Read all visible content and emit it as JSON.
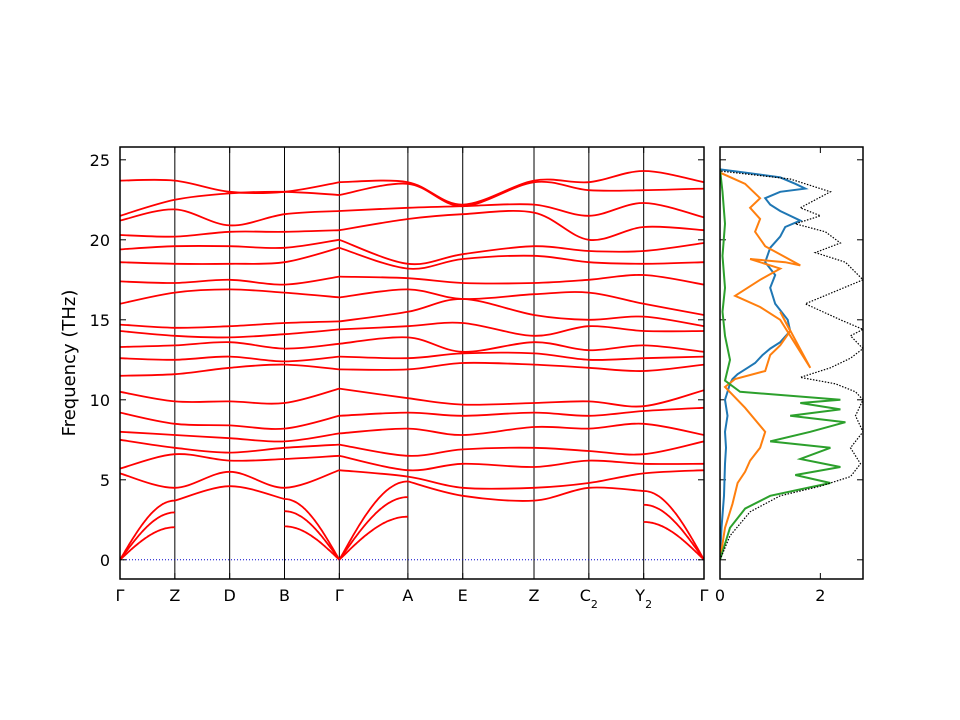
{
  "chart_data": [
    {
      "type": "line",
      "ylabel": "Frequency (THz)",
      "xlabel": "",
      "ylim": [
        -1.2,
        25.8
      ],
      "yticks": [
        0,
        5,
        10,
        15,
        20,
        25
      ],
      "path_labels": [
        {
          "text": "Γ",
          "sub": "",
          "pos": 0.0
        },
        {
          "text": "Z",
          "sub": "",
          "pos": 1.0
        },
        {
          "text": "D",
          "sub": "",
          "pos": 2.0
        },
        {
          "text": "B",
          "sub": "",
          "pos": 3.0
        },
        {
          "text": "Γ",
          "sub": "",
          "pos": 4.0
        },
        {
          "text": "A",
          "sub": "",
          "pos": 5.25
        },
        {
          "text": "E",
          "sub": "",
          "pos": 6.25
        },
        {
          "text": "Z",
          "sub": "",
          "pos": 7.55
        },
        {
          "text": "C",
          "sub": "2",
          "pos": 8.55
        },
        {
          "text": "Y",
          "sub": "2",
          "pos": 9.55
        },
        {
          "text": "Γ",
          "sub": "",
          "pos": 10.65
        }
      ],
      "line_color": "#ff0000",
      "zero_line_color": "#0000cc",
      "acoustic_top_values": {
        "Z": 3.7,
        "D": 4.6,
        "B": 3.8,
        "A": 4.9,
        "E": 4.0,
        "Z2": 3.7,
        "C2": 4.5,
        "Y2": 4.3
      },
      "band_key_values": [
        {
          "at": [
            0,
            1,
            2,
            3,
            4,
            5.25,
            6.25,
            7.55,
            8.55,
            9.55,
            10.65
          ],
          "y": [
            5.4,
            4.5,
            5.5,
            4.5,
            5.6,
            5.2,
            4.5,
            4.5,
            4.8,
            5.4,
            5.6
          ]
        },
        {
          "at": [
            0,
            1,
            2,
            3,
            4,
            5.25,
            6.25,
            7.55,
            8.55,
            9.55,
            10.65
          ],
          "y": [
            5.7,
            6.6,
            6.2,
            6.3,
            6.5,
            5.6,
            6.0,
            5.8,
            6.2,
            6.0,
            6.0
          ]
        },
        {
          "at": [
            0,
            1,
            2,
            3,
            4,
            5.25,
            6.25,
            7.55,
            8.55,
            9.55,
            10.65
          ],
          "y": [
            7.5,
            7.0,
            6.7,
            7.0,
            7.2,
            6.5,
            6.9,
            7.0,
            6.8,
            6.6,
            7.4
          ]
        },
        {
          "at": [
            0,
            1,
            2,
            3,
            4,
            5.25,
            6.25,
            7.55,
            8.55,
            9.55,
            10.65
          ],
          "y": [
            8.0,
            7.8,
            7.6,
            7.4,
            7.9,
            8.2,
            7.8,
            8.3,
            8.2,
            8.5,
            7.8
          ]
        },
        {
          "at": [
            0,
            1,
            2,
            3,
            4,
            5.25,
            6.25,
            7.55,
            8.55,
            9.55,
            10.65
          ],
          "y": [
            9.2,
            8.5,
            8.4,
            8.2,
            9.0,
            9.2,
            9.0,
            9.2,
            9.0,
            9.3,
            9.5
          ]
        },
        {
          "at": [
            0,
            1,
            2,
            3,
            4,
            5.25,
            6.25,
            7.55,
            8.55,
            9.55,
            10.65
          ],
          "y": [
            10.5,
            9.9,
            9.9,
            9.8,
            10.7,
            10.1,
            9.7,
            9.8,
            9.9,
            9.6,
            10.6
          ]
        },
        {
          "at": [
            0,
            1,
            2,
            3,
            4,
            5.25,
            6.25,
            7.55,
            8.55,
            9.55,
            10.65
          ],
          "y": [
            11.5,
            11.6,
            12.0,
            12.2,
            11.9,
            11.9,
            12.3,
            12.2,
            12.0,
            11.8,
            12.2
          ]
        },
        {
          "at": [
            0,
            1,
            2,
            3,
            4,
            5.25,
            6.25,
            7.55,
            8.55,
            9.55,
            10.65
          ],
          "y": [
            12.6,
            12.5,
            12.7,
            12.4,
            12.7,
            12.6,
            12.9,
            12.9,
            12.5,
            12.6,
            12.7
          ]
        },
        {
          "at": [
            0,
            1,
            2,
            3,
            4,
            5.25,
            6.25,
            7.55,
            8.55,
            9.55,
            10.65
          ],
          "y": [
            13.3,
            13.4,
            13.6,
            13.2,
            13.5,
            13.9,
            13.0,
            13.6,
            13.1,
            13.4,
            13.0
          ]
        },
        {
          "at": [
            0,
            1,
            2,
            3,
            4,
            5.25,
            6.25,
            7.55,
            8.55,
            9.55,
            10.65
          ],
          "y": [
            14.3,
            14.0,
            13.9,
            14.1,
            14.4,
            14.6,
            14.8,
            14.0,
            14.6,
            14.3,
            14.3
          ]
        },
        {
          "at": [
            0,
            1,
            2,
            3,
            4,
            5.25,
            6.25,
            7.55,
            8.55,
            9.55,
            10.65
          ],
          "y": [
            14.7,
            14.5,
            14.6,
            14.8,
            14.9,
            15.5,
            16.3,
            15.3,
            15.0,
            15.2,
            14.6
          ]
        },
        {
          "at": [
            0,
            1,
            2,
            3,
            4,
            5.25,
            6.25,
            7.55,
            8.55,
            9.55,
            10.65
          ],
          "y": [
            16.0,
            16.7,
            16.9,
            16.7,
            16.4,
            16.9,
            16.3,
            16.6,
            16.7,
            16.0,
            15.3
          ]
        },
        {
          "at": [
            0,
            1,
            2,
            3,
            4,
            5.25,
            6.25,
            7.55,
            8.55,
            9.55,
            10.65
          ],
          "y": [
            17.4,
            17.3,
            17.5,
            17.2,
            17.7,
            17.6,
            17.3,
            17.3,
            17.5,
            17.8,
            17.2
          ]
        },
        {
          "at": [
            0,
            1,
            2,
            3,
            4,
            5.25,
            6.25,
            7.55,
            8.55,
            9.55,
            10.65
          ],
          "y": [
            18.6,
            18.5,
            18.5,
            18.6,
            19.5,
            18.2,
            18.8,
            19.0,
            18.6,
            18.5,
            18.6
          ]
        },
        {
          "at": [
            0,
            1,
            2,
            3,
            4,
            5.25,
            6.25,
            7.55,
            8.55,
            9.55,
            10.65
          ],
          "y": [
            19.4,
            19.6,
            19.6,
            19.5,
            20.0,
            18.5,
            19.1,
            19.6,
            19.3,
            19.3,
            19.8
          ]
        },
        {
          "at": [
            0,
            1,
            2,
            3,
            4,
            5.25,
            6.25,
            7.55,
            8.55,
            9.55,
            10.65
          ],
          "y": [
            20.3,
            20.2,
            20.5,
            20.5,
            20.6,
            21.3,
            21.6,
            21.7,
            20.0,
            20.8,
            20.6
          ]
        },
        {
          "at": [
            0,
            1,
            2,
            3,
            4,
            5.25,
            6.25,
            7.55,
            8.55,
            9.55,
            10.65
          ],
          "y": [
            21.2,
            21.9,
            20.9,
            21.6,
            21.8,
            22.0,
            22.1,
            22.2,
            21.5,
            22.3,
            21.4
          ]
        },
        {
          "at": [
            0,
            1,
            2,
            3,
            4,
            5.25,
            6.25,
            7.55,
            8.55,
            9.55,
            10.65
          ],
          "y": [
            21.5,
            22.5,
            22.9,
            23.0,
            22.8,
            23.5,
            22.1,
            23.6,
            23.1,
            23.1,
            23.2
          ]
        },
        {
          "at": [
            0,
            1,
            2,
            3,
            4,
            5.25,
            6.25,
            7.55,
            8.55,
            9.55,
            10.65
          ],
          "y": [
            23.7,
            23.7,
            23.0,
            23.0,
            23.6,
            23.6,
            22.2,
            23.7,
            23.6,
            24.3,
            23.6
          ]
        }
      ]
    },
    {
      "type": "line",
      "xlabel": "",
      "ylabel": "",
      "xlim": [
        0,
        2.85
      ],
      "xticks": [
        0,
        2
      ],
      "ylim": [
        -1.2,
        25.8
      ],
      "series": [
        {
          "color": "#1f77b4",
          "style": "solid",
          "x": [
            0,
            0.03,
            0.08,
            0.1,
            0.12,
            0.1,
            0.15,
            0.1,
            0.15,
            0.2,
            0.25,
            0.35,
            0.55,
            0.7,
            0.85,
            1.0,
            1.2,
            1.4,
            1.35,
            1.1,
            1.0,
            1.1,
            0.9,
            1.0,
            1.2,
            1.3,
            1.6,
            1.2,
            1.0,
            0.9,
            1.2,
            1.7,
            1.5,
            1.2,
            0.5,
            0
          ],
          "y": [
            0,
            2,
            4,
            6,
            7,
            8,
            9,
            10,
            10.5,
            11,
            11.3,
            11.6,
            12.0,
            12.3,
            12.8,
            13.2,
            13.6,
            14.3,
            15.0,
            16.0,
            17.0,
            17.8,
            18.6,
            19.5,
            20.2,
            20.8,
            21.2,
            21.8,
            22.2,
            22.6,
            23.0,
            23.2,
            23.5,
            23.9,
            24.2,
            24.4
          ]
        },
        {
          "color": "#ff7f0e",
          "style": "solid",
          "x": [
            0,
            0.1,
            0.25,
            0.35,
            0.5,
            0.6,
            0.8,
            0.9,
            0.5,
            0.1,
            0.3,
            0.9,
            1.0,
            1.2,
            1.4,
            1.2,
            1.8,
            1.2,
            0.8,
            0.3,
            0.8,
            1.2,
            0.6,
            1.3,
            1.6,
            0.9,
            0.7,
            0.8,
            0.6,
            0.8,
            0.5,
            0
          ],
          "y": [
            0,
            2,
            3.5,
            4.8,
            5.5,
            6.2,
            7.0,
            8.0,
            9.5,
            10.8,
            11.3,
            11.8,
            12.8,
            13.4,
            14.3,
            15.5,
            12.0,
            15.0,
            15.8,
            16.5,
            17.5,
            18.2,
            18.8,
            18.6,
            18.4,
            19.6,
            20.5,
            21.3,
            22.0,
            22.6,
            23.5,
            24.2
          ]
        },
        {
          "color": "#2ca02c",
          "style": "solid",
          "x": [
            0,
            0.2,
            0.5,
            1.0,
            1.6,
            2.2,
            1.5,
            2.4,
            1.6,
            2.2,
            1.0,
            1.8,
            2.5,
            1.4,
            2.4,
            1.6,
            2.4,
            0.4,
            0.1,
            0.2,
            0.1,
            0.05,
            0.1,
            0.05,
            0.1,
            0.05,
            0
          ],
          "y": [
            0,
            2,
            3.2,
            4.0,
            4.4,
            4.8,
            5.3,
            5.8,
            6.3,
            7.0,
            7.4,
            8.0,
            8.6,
            9.0,
            9.4,
            9.8,
            10.0,
            10.5,
            11.2,
            12.5,
            14.0,
            15.5,
            17.0,
            19.0,
            21.0,
            23.0,
            24.4
          ]
        },
        {
          "color": "#000000",
          "style": "dotted",
          "x": [
            0,
            0.2,
            0.6,
            1.2,
            2.0,
            2.6,
            2.8,
            2.6,
            2.85,
            2.7,
            2.85,
            2.7,
            2.3,
            1.6,
            2.2,
            2.6,
            2.85,
            2.6,
            2.85,
            2.4,
            1.7,
            2.85,
            2.5,
            1.9,
            2.4,
            2.1,
            1.5,
            2.0,
            1.6,
            2.2,
            1.4,
            0
          ],
          "y": [
            0,
            1.5,
            3.0,
            4.0,
            4.6,
            5.2,
            6.0,
            7.0,
            8.0,
            9.0,
            10.0,
            10.5,
            11.0,
            11.4,
            12.0,
            12.6,
            13.2,
            14.0,
            14.4,
            15.0,
            16.0,
            17.5,
            18.6,
            19.2,
            19.8,
            20.5,
            21.0,
            21.5,
            22.0,
            23.0,
            23.8,
            24.3
          ]
        }
      ]
    }
  ]
}
